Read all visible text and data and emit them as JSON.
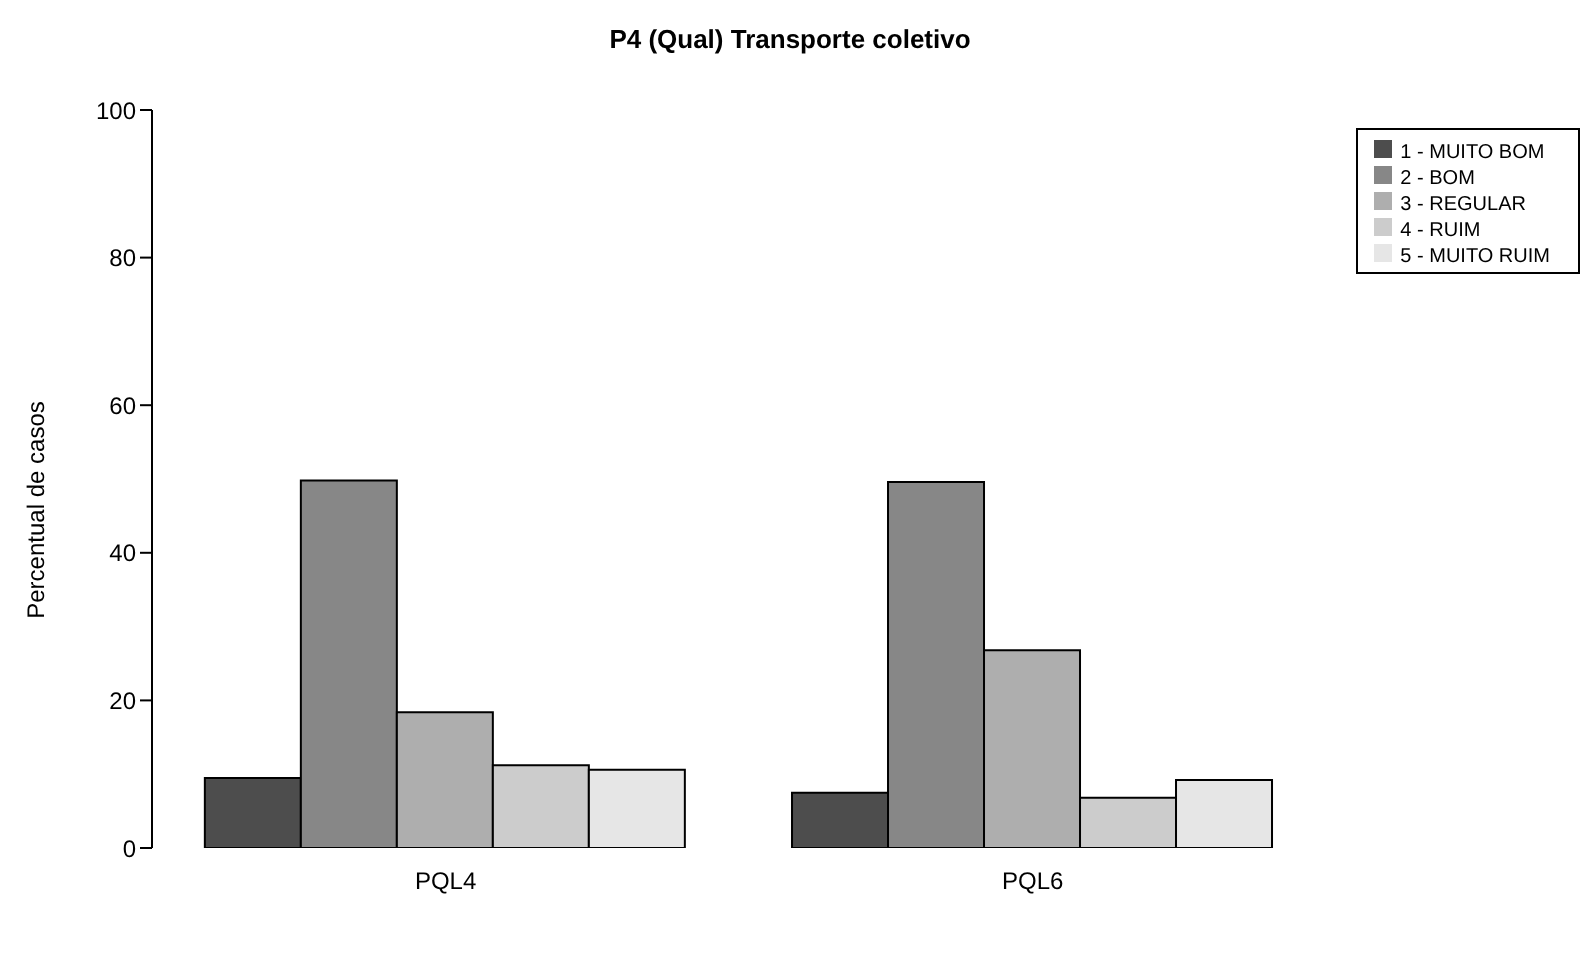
{
  "chart_data": {
    "type": "bar",
    "title": "P4 (Qual) Transporte coletivo",
    "ylabel": "Percentual de casos",
    "categories": [
      "PQL4",
      "PQL6"
    ],
    "series": [
      {
        "name": "1 - MUITO BOM",
        "color": "#4d4d4d",
        "values": [
          9.5,
          7.5
        ]
      },
      {
        "name": "2 - BOM",
        "color": "#878787",
        "values": [
          49.8,
          49.6
        ]
      },
      {
        "name": "3 - REGULAR",
        "color": "#aeaeae",
        "values": [
          18.4,
          26.8
        ]
      },
      {
        "name": "4 - RUIM",
        "color": "#cccccc",
        "values": [
          11.2,
          6.8
        ]
      },
      {
        "name": "5 - MUITO RUIM",
        "color": "#e6e6e6",
        "values": [
          10.6,
          9.2
        ]
      }
    ],
    "ylim": [
      0,
      100
    ],
    "yticks": [
      0,
      20,
      40,
      60,
      80,
      100
    ],
    "grid": false,
    "legend": "top right"
  }
}
